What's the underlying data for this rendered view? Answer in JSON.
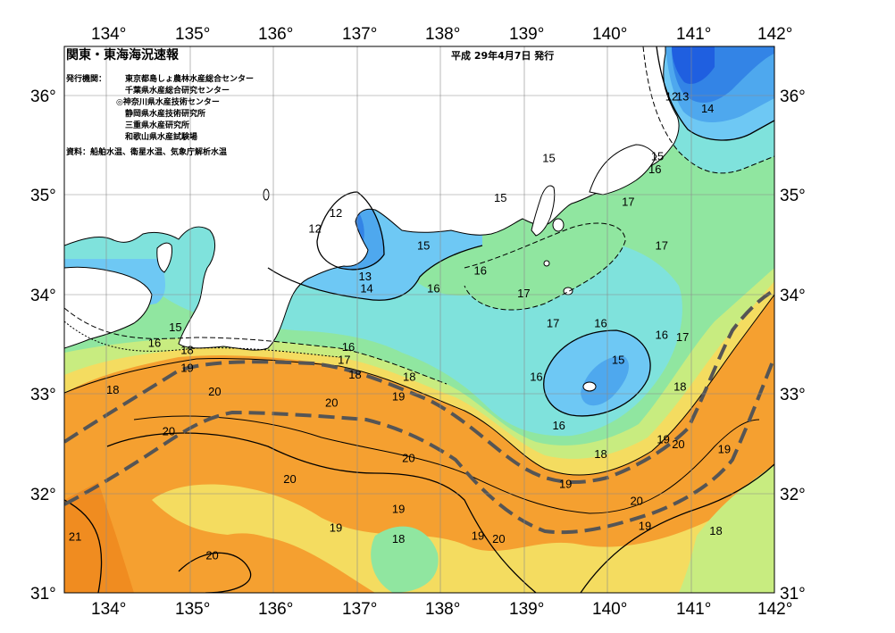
{
  "header": {
    "title": "関東・東海海況速報",
    "date": "平成 29年4月7日 発行"
  },
  "issuer": {
    "label": "発行機関：",
    "orgs": [
      "東京都島しょ農林水産総合センター",
      "千葉県水産総合研究センター",
      "◎神奈川県水産技術センター",
      "静岡県水産技術研究所",
      "三重県水産研究所",
      "和歌山県水産試験場"
    ]
  },
  "source": "資料：船舶水温、衛星水温、気象庁解析水温",
  "axes": {
    "lon_labels": [
      "134°",
      "135°",
      "136°",
      "137°",
      "138°",
      "139°",
      "140°",
      "141°",
      "142°"
    ],
    "lat_labels": [
      "36°",
      "35°",
      "34°",
      "33°",
      "32°",
      "31°"
    ],
    "lon_range": [
      133.5,
      142.0
    ],
    "lat_range": [
      31.0,
      36.5
    ]
  },
  "isotherm_labels": [
    {
      "text": "12",
      "lon": 136.75,
      "lat": 34.83
    },
    {
      "text": "12",
      "lon": 136.5,
      "lat": 34.67
    },
    {
      "text": "13",
      "lon": 137.1,
      "lat": 34.19
    },
    {
      "text": "14",
      "lon": 137.12,
      "lat": 34.07
    },
    {
      "text": "15",
      "lon": 137.8,
      "lat": 34.5
    },
    {
      "text": "15",
      "lon": 138.72,
      "lat": 34.98
    },
    {
      "text": "15",
      "lon": 139.3,
      "lat": 35.38
    },
    {
      "text": "16",
      "lon": 138.48,
      "lat": 34.25
    },
    {
      "text": "16",
      "lon": 137.92,
      "lat": 34.07
    },
    {
      "text": "17",
      "lon": 139.0,
      "lat": 34.02
    },
    {
      "text": "17",
      "lon": 139.35,
      "lat": 33.72
    },
    {
      "text": "16",
      "lon": 139.92,
      "lat": 33.72
    },
    {
      "text": "16",
      "lon": 140.65,
      "lat": 33.6
    },
    {
      "text": "17",
      "lon": 140.9,
      "lat": 33.58
    },
    {
      "text": "17",
      "lon": 140.25,
      "lat": 34.94
    },
    {
      "text": "17",
      "lon": 140.65,
      "lat": 34.5
    },
    {
      "text": "15",
      "lon": 140.6,
      "lat": 35.4
    },
    {
      "text": "16",
      "lon": 140.57,
      "lat": 35.27
    },
    {
      "text": "12",
      "lon": 140.77,
      "lat": 36.0
    },
    {
      "text": "13",
      "lon": 140.9,
      "lat": 36.0
    },
    {
      "text": "14",
      "lon": 141.2,
      "lat": 35.88
    },
    {
      "text": "15",
      "lon": 134.83,
      "lat": 33.68
    },
    {
      "text": "16",
      "lon": 134.58,
      "lat": 33.52
    },
    {
      "text": "18",
      "lon": 134.97,
      "lat": 33.45
    },
    {
      "text": "19",
      "lon": 134.97,
      "lat": 33.27
    },
    {
      "text": "18",
      "lon": 134.08,
      "lat": 33.05
    },
    {
      "text": "16",
      "lon": 136.9,
      "lat": 33.48
    },
    {
      "text": "17",
      "lon": 136.85,
      "lat": 33.35
    },
    {
      "text": "18",
      "lon": 136.98,
      "lat": 33.2
    },
    {
      "text": "18",
      "lon": 137.63,
      "lat": 33.18
    },
    {
      "text": "19",
      "lon": 137.5,
      "lat": 32.98
    },
    {
      "text": "20",
      "lon": 135.3,
      "lat": 33.03
    },
    {
      "text": "20",
      "lon": 136.7,
      "lat": 32.92
    },
    {
      "text": "20",
      "lon": 134.75,
      "lat": 32.63
    },
    {
      "text": "16",
      "lon": 139.15,
      "lat": 33.18
    },
    {
      "text": "16",
      "lon": 139.42,
      "lat": 32.69
    },
    {
      "text": "15",
      "lon": 140.13,
      "lat": 33.35
    },
    {
      "text": "18",
      "lon": 140.87,
      "lat": 33.08
    },
    {
      "text": "19",
      "lon": 140.67,
      "lat": 32.55
    },
    {
      "text": "20",
      "lon": 140.85,
      "lat": 32.5
    },
    {
      "text": "18",
      "lon": 139.92,
      "lat": 32.4
    },
    {
      "text": "19",
      "lon": 139.5,
      "lat": 32.1
    },
    {
      "text": "20",
      "lon": 137.62,
      "lat": 32.36
    },
    {
      "text": "20",
      "lon": 136.2,
      "lat": 32.15
    },
    {
      "text": "19",
      "lon": 137.5,
      "lat": 31.85
    },
    {
      "text": "19",
      "lon": 136.75,
      "lat": 31.66
    },
    {
      "text": "18",
      "lon": 137.5,
      "lat": 31.55
    },
    {
      "text": "19",
      "lon": 138.45,
      "lat": 31.58
    },
    {
      "text": "20",
      "lon": 138.7,
      "lat": 31.55
    },
    {
      "text": "20",
      "lon": 140.35,
      "lat": 31.93
    },
    {
      "text": "19",
      "lon": 140.45,
      "lat": 31.68
    },
    {
      "text": "19",
      "lon": 141.4,
      "lat": 32.45
    },
    {
      "text": "18",
      "lon": 141.3,
      "lat": 31.63
    },
    {
      "text": "21",
      "lon": 133.63,
      "lat": 31.57
    },
    {
      "text": "20",
      "lon": 135.27,
      "lat": 31.38
    }
  ],
  "colors": {
    "t12": "#1f5fe0",
    "t13": "#3384e6",
    "t14": "#4ea8ee",
    "t15": "#6ec8f4",
    "t16": "#7fe2dc",
    "t17": "#90e6a0",
    "t18": "#c8ec80",
    "t19": "#f4dc60",
    "t20": "#f5a030",
    "t21": "#f08c20",
    "land": "#ffffff",
    "kuroshio": "#555555"
  }
}
